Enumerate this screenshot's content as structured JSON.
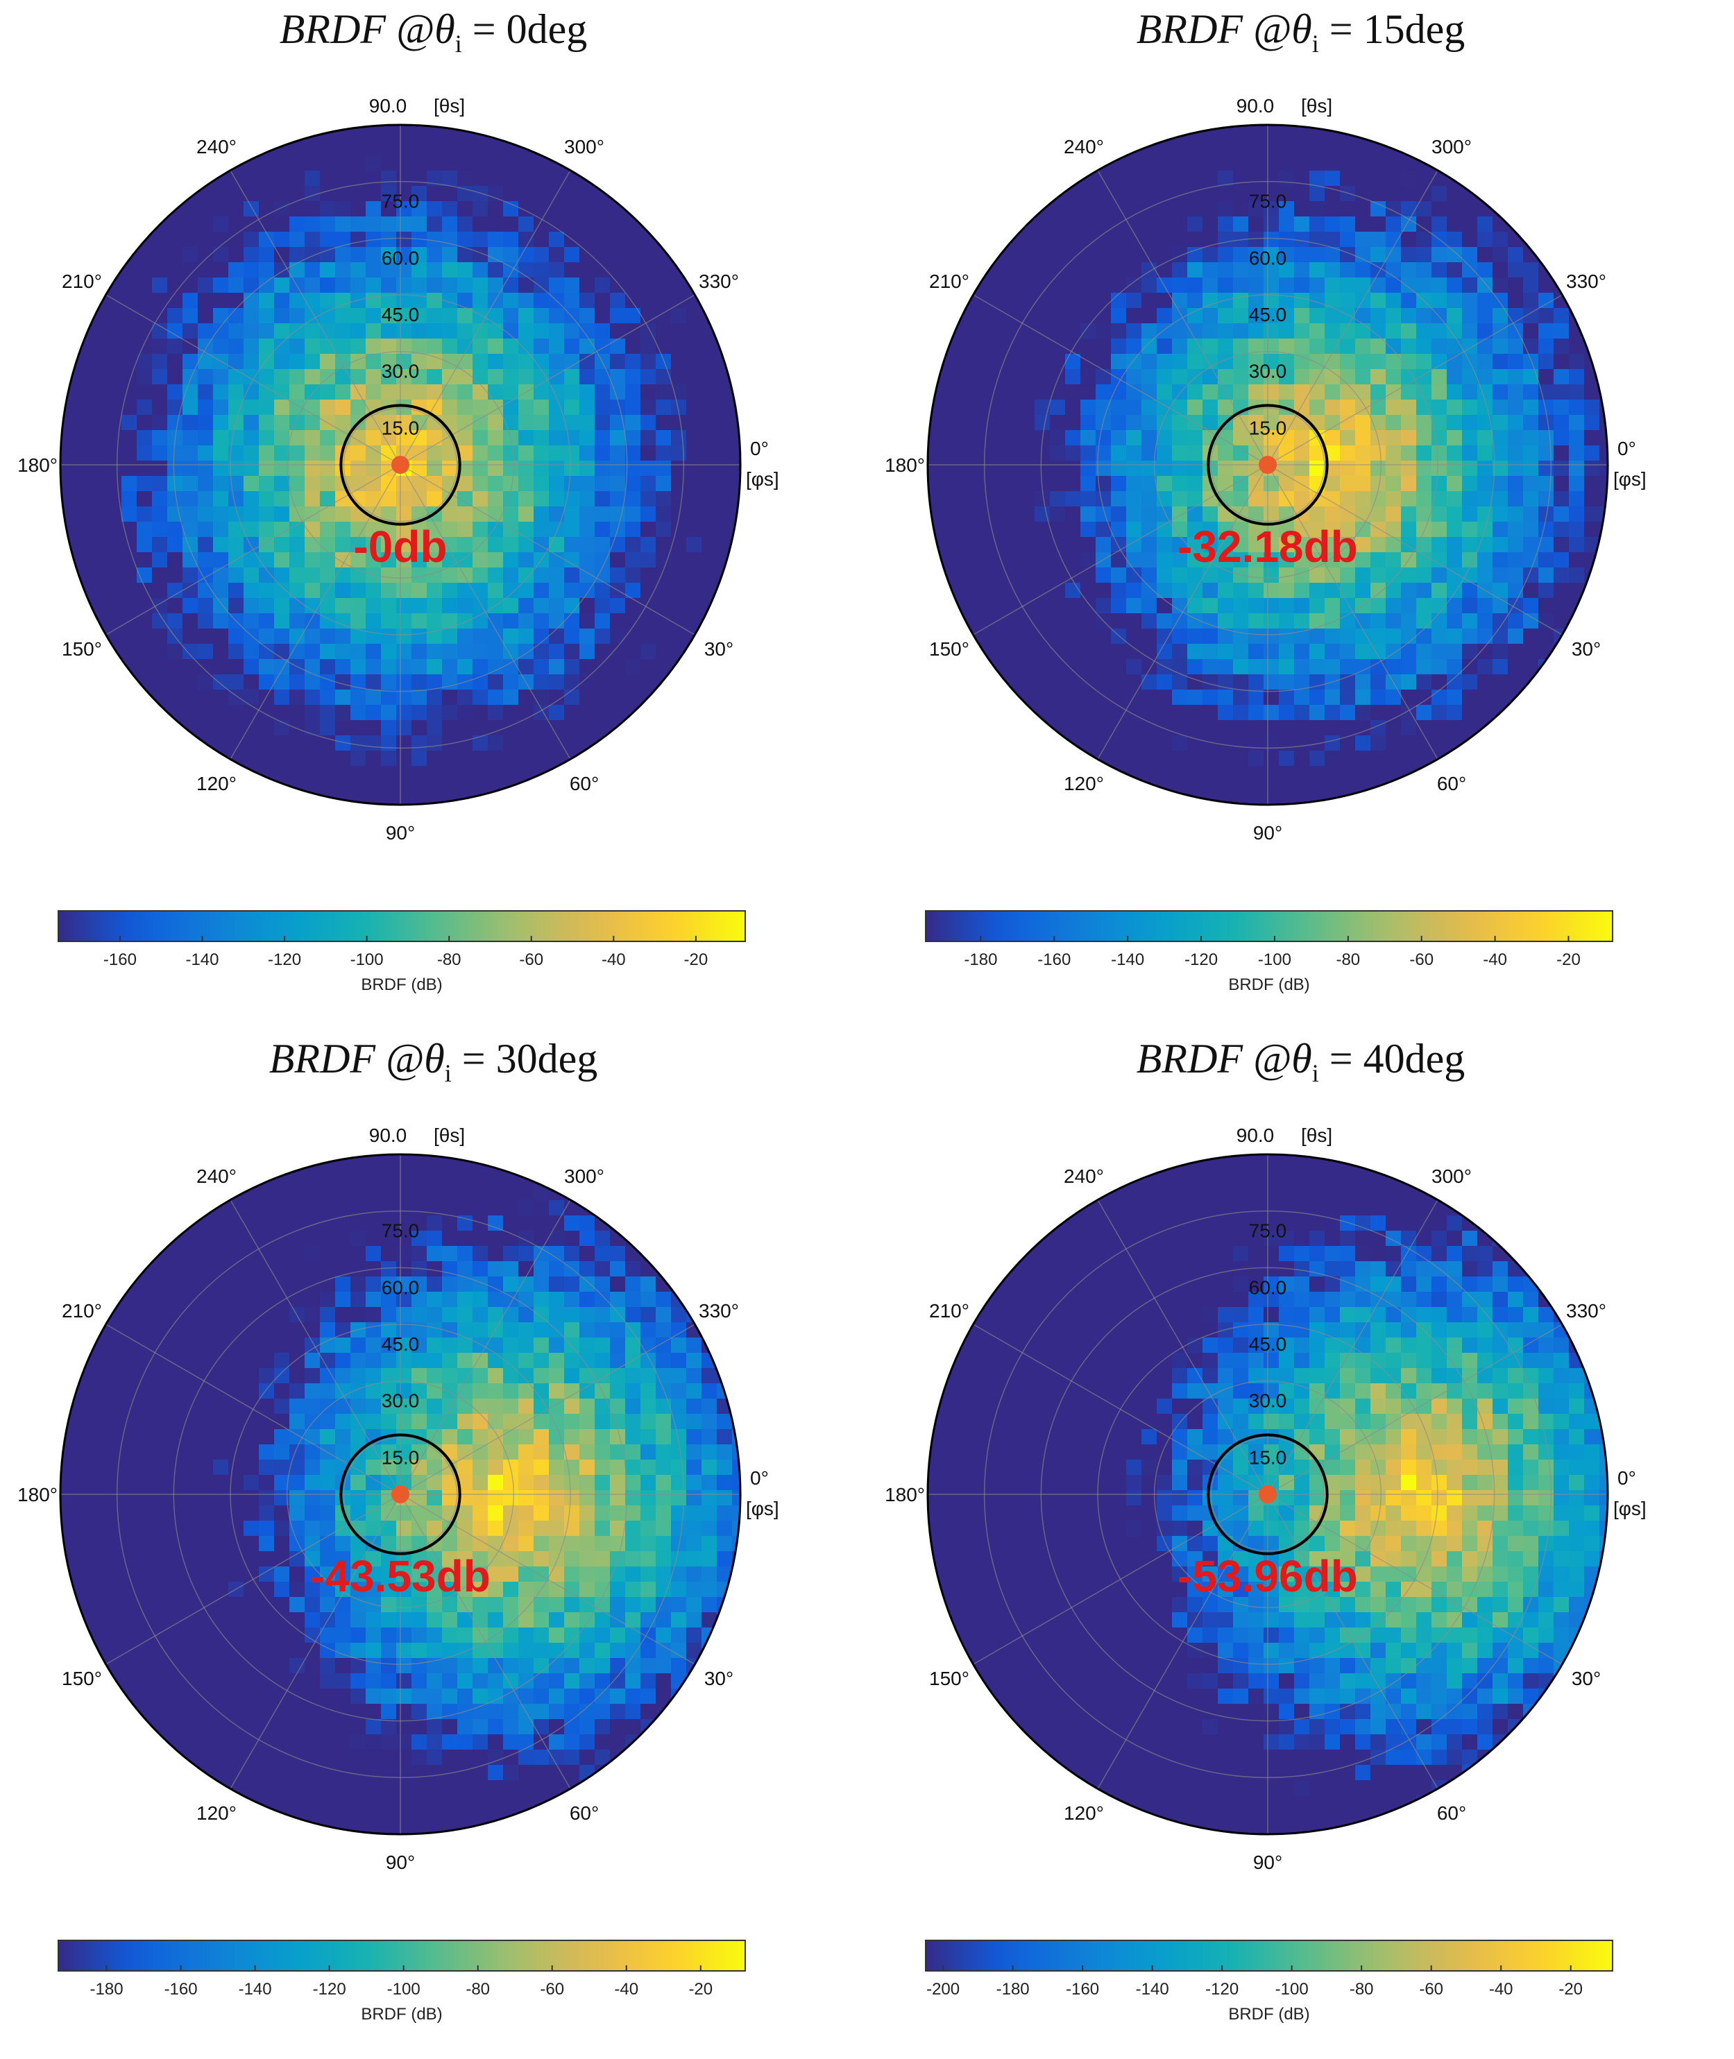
{
  "chart_data": [
    {
      "type": "heatmap",
      "subtype": "polar",
      "title_parts": {
        "func": "BRDF",
        "at": "@",
        "sym": "θ",
        "sub": "i",
        "eq": "=",
        "value": "0deg"
      },
      "annotation": "-0db",
      "theta_axis_label": "[θs]",
      "phi_axis_label": "[φs]",
      "radial_ticks": [
        "15.0",
        "30.0",
        "45.0",
        "60.0",
        "75.0",
        "90.0"
      ],
      "angular_ticks": [
        "0°",
        "30°",
        "60°",
        "90°",
        "120°",
        "150°",
        "180°",
        "210°",
        "240°",
        "300°",
        "330°"
      ],
      "colorbar": {
        "label": "BRDF (dB)",
        "range": [
          -175,
          -8
        ],
        "ticks": [
          "-160",
          "-140",
          "-120",
          "-100",
          "-80",
          "-60",
          "-40",
          "-20"
        ]
      },
      "incidence_deg": 0,
      "specular_offset_deg": 0
    },
    {
      "type": "heatmap",
      "subtype": "polar",
      "title_parts": {
        "func": "BRDF",
        "at": "@",
        "sym": "θ",
        "sub": "i",
        "eq": "=",
        "value": "15deg"
      },
      "annotation": "-32.18db",
      "theta_axis_label": "[θs]",
      "phi_axis_label": "[φs]",
      "radial_ticks": [
        "15.0",
        "30.0",
        "45.0",
        "60.0",
        "75.0",
        "90.0"
      ],
      "angular_ticks": [
        "0°",
        "30°",
        "60°",
        "90°",
        "120°",
        "150°",
        "180°",
        "210°",
        "240°",
        "300°",
        "330°"
      ],
      "colorbar": {
        "label": "BRDF (dB)",
        "range": [
          -195,
          -8
        ],
        "ticks": [
          "-180",
          "-160",
          "-140",
          "-120",
          "-100",
          "-80",
          "-60",
          "-40",
          "-20"
        ]
      },
      "incidence_deg": 15,
      "specular_offset_deg": 15
    },
    {
      "type": "heatmap",
      "subtype": "polar",
      "title_parts": {
        "func": "BRDF",
        "at": "@",
        "sym": "θ",
        "sub": "i",
        "eq": "=",
        "value": "30deg"
      },
      "annotation": "-43.53db",
      "theta_axis_label": "[θs]",
      "phi_axis_label": "[φs]",
      "radial_ticks": [
        "15.0",
        "30.0",
        "45.0",
        "60.0",
        "75.0",
        "90.0"
      ],
      "angular_ticks": [
        "0°",
        "30°",
        "60°",
        "90°",
        "120°",
        "150°",
        "180°",
        "210°",
        "240°",
        "300°",
        "330°"
      ],
      "colorbar": {
        "label": "BRDF (dB)",
        "range": [
          -193,
          -8
        ],
        "ticks": [
          "-180",
          "-160",
          "-140",
          "-120",
          "-100",
          "-80",
          "-60",
          "-40",
          "-20"
        ]
      },
      "incidence_deg": 30,
      "specular_offset_deg": 30
    },
    {
      "type": "heatmap",
      "subtype": "polar",
      "title_parts": {
        "func": "BRDF",
        "at": "@",
        "sym": "θ",
        "sub": "i",
        "eq": "=",
        "value": "40deg"
      },
      "annotation": "-53.96db",
      "theta_axis_label": "[θs]",
      "phi_axis_label": "[φs]",
      "radial_ticks": [
        "15.0",
        "30.0",
        "45.0",
        "60.0",
        "75.0",
        "90.0"
      ],
      "angular_ticks": [
        "0°",
        "30°",
        "60°",
        "90°",
        "120°",
        "150°",
        "180°",
        "210°",
        "240°",
        "300°",
        "330°"
      ],
      "colorbar": {
        "label": "BRDF (dB)",
        "range": [
          -205,
          -8
        ],
        "ticks": [
          "-200",
          "-180",
          "-160",
          "-140",
          "-120",
          "-100",
          "-80",
          "-60",
          "-40",
          "-20"
        ]
      },
      "incidence_deg": 40,
      "specular_offset_deg": 40
    }
  ],
  "colors": {
    "annotation": "#e31a1c",
    "marker": "#ea5a2a",
    "grid": "#8c8c8c",
    "parula_low": "#352a87",
    "parula_high": "#f9fb0e"
  }
}
